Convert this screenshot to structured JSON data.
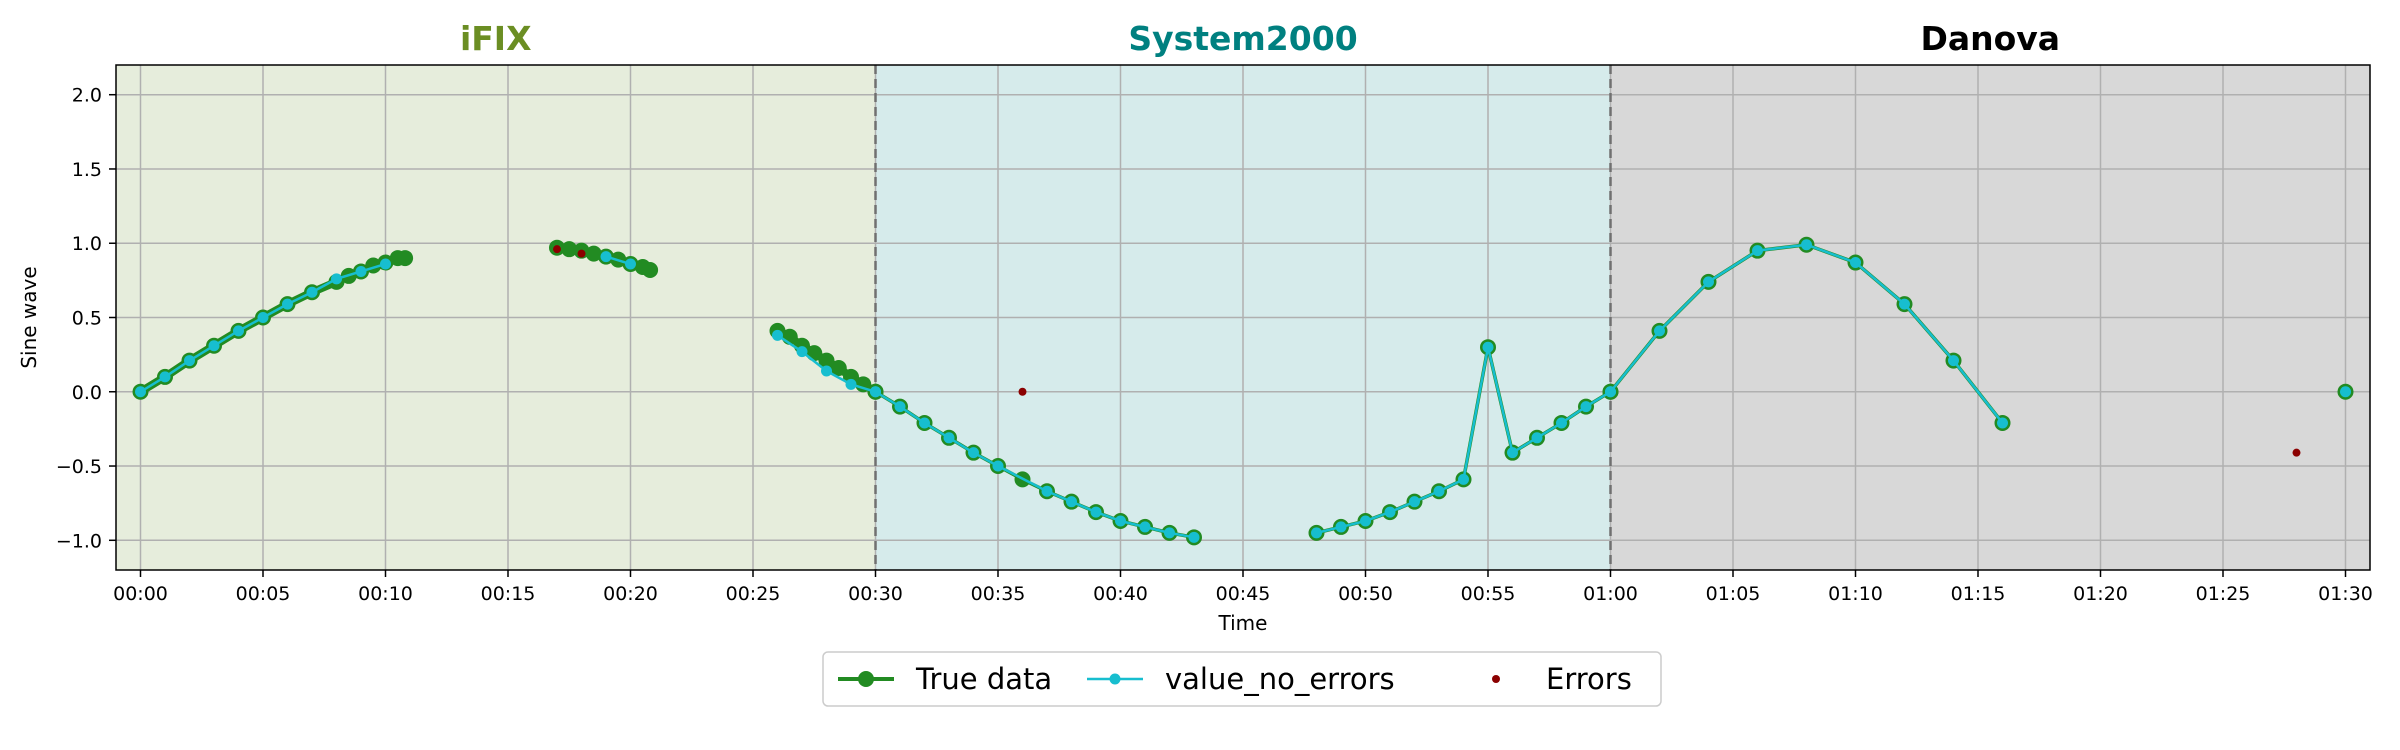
{
  "chart_data": {
    "type": "line",
    "title": "",
    "xlabel": "Time",
    "ylabel": "Sine wave",
    "xlim": [
      -1,
      91
    ],
    "ylim": [
      -1.2,
      2.2
    ],
    "grid": true,
    "legend_position": "bottom-center",
    "x_unit": "minutes",
    "x_ticks": [
      {
        "value": 0,
        "label": "00:00"
      },
      {
        "value": 5,
        "label": "00:05"
      },
      {
        "value": 10,
        "label": "00:10"
      },
      {
        "value": 15,
        "label": "00:15"
      },
      {
        "value": 20,
        "label": "00:20"
      },
      {
        "value": 25,
        "label": "00:25"
      },
      {
        "value": 30,
        "label": "00:30"
      },
      {
        "value": 35,
        "label": "00:35"
      },
      {
        "value": 40,
        "label": "00:40"
      },
      {
        "value": 45,
        "label": "00:45"
      },
      {
        "value": 50,
        "label": "00:50"
      },
      {
        "value": 55,
        "label": "00:55"
      },
      {
        "value": 60,
        "label": "01:00"
      },
      {
        "value": 65,
        "label": "01:05"
      },
      {
        "value": 70,
        "label": "01:10"
      },
      {
        "value": 75,
        "label": "01:15"
      },
      {
        "value": 80,
        "label": "01:20"
      },
      {
        "value": 85,
        "label": "01:25"
      },
      {
        "value": 90,
        "label": "01:30"
      }
    ],
    "y_ticks": [
      {
        "value": 2.0,
        "label": "2.0"
      },
      {
        "value": 1.5,
        "label": "1.5"
      },
      {
        "value": 1.0,
        "label": "1.0"
      },
      {
        "value": 0.5,
        "label": "0.5"
      },
      {
        "value": 0.0,
        "label": "0.0"
      },
      {
        "value": -0.5,
        "label": "−0.5"
      },
      {
        "value": -1.0,
        "label": "−1.0"
      }
    ],
    "regions": [
      {
        "name": "iFIX",
        "x_start": -1,
        "x_end": 30,
        "shade_color": "#e6eddc",
        "title_color": "#6b8e23"
      },
      {
        "name": "System2000",
        "x_start": 30,
        "x_end": 60,
        "shade_color": "#d6ebeb",
        "title_color": "#008080"
      },
      {
        "name": "Danova",
        "x_start": 60,
        "x_end": 91,
        "shade_color": "#d8d8d8",
        "title_color": "#000000"
      }
    ],
    "dividers": [
      30,
      60
    ],
    "legend": [
      {
        "label": "True data",
        "series": "true_data"
      },
      {
        "label": "value_no_errors",
        "series": "value_no_errors"
      },
      {
        "label": "Errors",
        "series": "errors"
      }
    ],
    "series": {
      "true_data": {
        "color": "#228b22",
        "segments": [
          {
            "dense": true,
            "x": [
              0,
              1,
              2,
              3,
              4,
              5,
              6,
              7,
              8,
              8.5,
              9,
              9.5,
              10,
              10.5,
              10.8
            ],
            "y": [
              0,
              0.1,
              0.21,
              0.31,
              0.41,
              0.5,
              0.59,
              0.67,
              0.74,
              0.78,
              0.81,
              0.85,
              0.87,
              0.9,
              0.9
            ]
          },
          {
            "dense": true,
            "x": [
              17,
              17.5,
              18,
              18.5,
              19,
              19.5,
              20,
              20.5,
              20.8
            ],
            "y": [
              0.97,
              0.96,
              0.95,
              0.93,
              0.91,
              0.89,
              0.86,
              0.84,
              0.82
            ]
          },
          {
            "dense": true,
            "x": [
              26,
              26.5,
              27,
              27.5,
              28,
              28.5,
              29,
              29.5,
              30
            ],
            "y": [
              0.41,
              0.37,
              0.31,
              0.26,
              0.21,
              0.16,
              0.1,
              0.05,
              0
            ]
          },
          {
            "dense": false,
            "x": [
              30,
              31,
              32,
              33,
              34,
              35,
              36,
              37,
              38,
              39,
              40,
              41,
              42,
              43
            ],
            "y": [
              0,
              -0.1,
              -0.21,
              -0.31,
              -0.41,
              -0.5,
              -0.59,
              -0.67,
              -0.74,
              -0.81,
              -0.87,
              -0.91,
              -0.95,
              -0.98
            ]
          },
          {
            "dense": false,
            "x": [
              48,
              49,
              50,
              51,
              52,
              53,
              54,
              55,
              56,
              57,
              58,
              59,
              60
            ],
            "y": [
              -0.95,
              -0.91,
              -0.87,
              -0.81,
              -0.74,
              -0.67,
              -0.59,
              0.3,
              -0.41,
              -0.31,
              -0.21,
              -0.1,
              0
            ]
          },
          {
            "dense": false,
            "x": [
              60,
              62,
              64,
              66,
              68,
              70,
              72,
              74,
              76
            ],
            "y": [
              0,
              0.41,
              0.74,
              0.95,
              0.99,
              0.87,
              0.59,
              0.21,
              -0.21
            ]
          },
          {
            "dense": false,
            "x": [
              90
            ],
            "y": [
              0
            ]
          }
        ]
      },
      "value_no_errors": {
        "color": "#17becf",
        "segments": [
          {
            "x": [
              0,
              1,
              2,
              3,
              4,
              5,
              6,
              7,
              8,
              9,
              10
            ],
            "y": [
              0,
              0.1,
              0.21,
              0.31,
              0.41,
              0.5,
              0.59,
              0.67,
              0.76,
              0.81,
              0.86
            ]
          },
          {
            "x": [
              19,
              20
            ],
            "y": [
              0.91,
              0.86
            ]
          },
          {
            "x": [
              26,
              27,
              28,
              29,
              30
            ],
            "y": [
              0.38,
              0.27,
              0.14,
              0.05,
              0
            ]
          },
          {
            "x": [
              30,
              31,
              32,
              33,
              34,
              35,
              37,
              38,
              39,
              40,
              41,
              42,
              43
            ],
            "y": [
              0,
              -0.1,
              -0.21,
              -0.31,
              -0.41,
              -0.5,
              -0.67,
              -0.74,
              -0.81,
              -0.87,
              -0.91,
              -0.95,
              -0.98
            ]
          },
          {
            "x": [
              48,
              49,
              50,
              51,
              52,
              53,
              54,
              55,
              56,
              57,
              58,
              59,
              60
            ],
            "y": [
              -0.95,
              -0.91,
              -0.87,
              -0.81,
              -0.74,
              -0.67,
              -0.59,
              0.3,
              -0.41,
              -0.31,
              -0.21,
              -0.1,
              0
            ]
          },
          {
            "x": [
              60,
              62,
              64,
              66,
              68,
              70,
              72,
              74,
              76
            ],
            "y": [
              0,
              0.41,
              0.74,
              0.95,
              0.99,
              0.87,
              0.59,
              0.21,
              -0.21
            ]
          },
          {
            "x": [
              90
            ],
            "y": [
              0
            ]
          }
        ]
      },
      "errors": {
        "color": "#8b0000",
        "points": [
          {
            "x": 17,
            "y": 0.96
          },
          {
            "x": 18,
            "y": 0.93
          },
          {
            "x": 36,
            "y": 0
          },
          {
            "x": 88,
            "y": -0.41
          }
        ]
      }
    }
  }
}
